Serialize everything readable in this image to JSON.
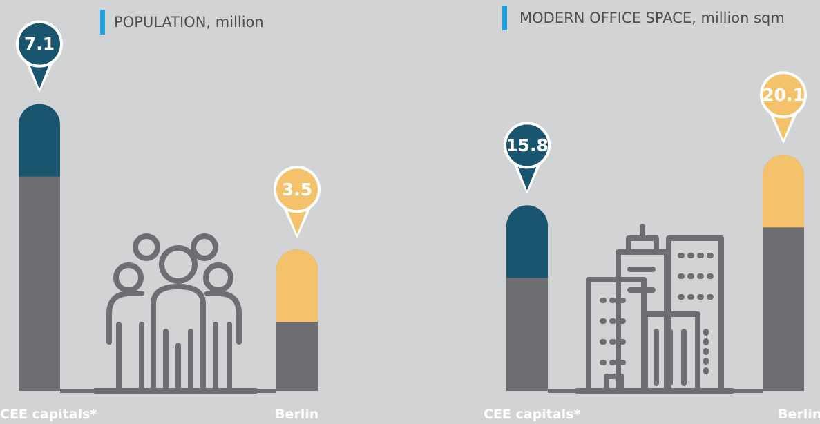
{
  "chart_data": [
    {
      "type": "bar",
      "title": "POPULATION, million",
      "categories": [
        "CEE capitals*",
        "Berlin"
      ],
      "values": [
        7.1,
        3.5
      ],
      "colors": [
        "#1a5570",
        "#f3c26a"
      ]
    },
    {
      "type": "bar",
      "title": "MODERN OFFICE SPACE, million sqm",
      "categories": [
        "CEE capitals*",
        "Berlin"
      ],
      "values": [
        15.8,
        20.1
      ],
      "colors": [
        "#1a5570",
        "#f3c26a"
      ]
    }
  ]
}
